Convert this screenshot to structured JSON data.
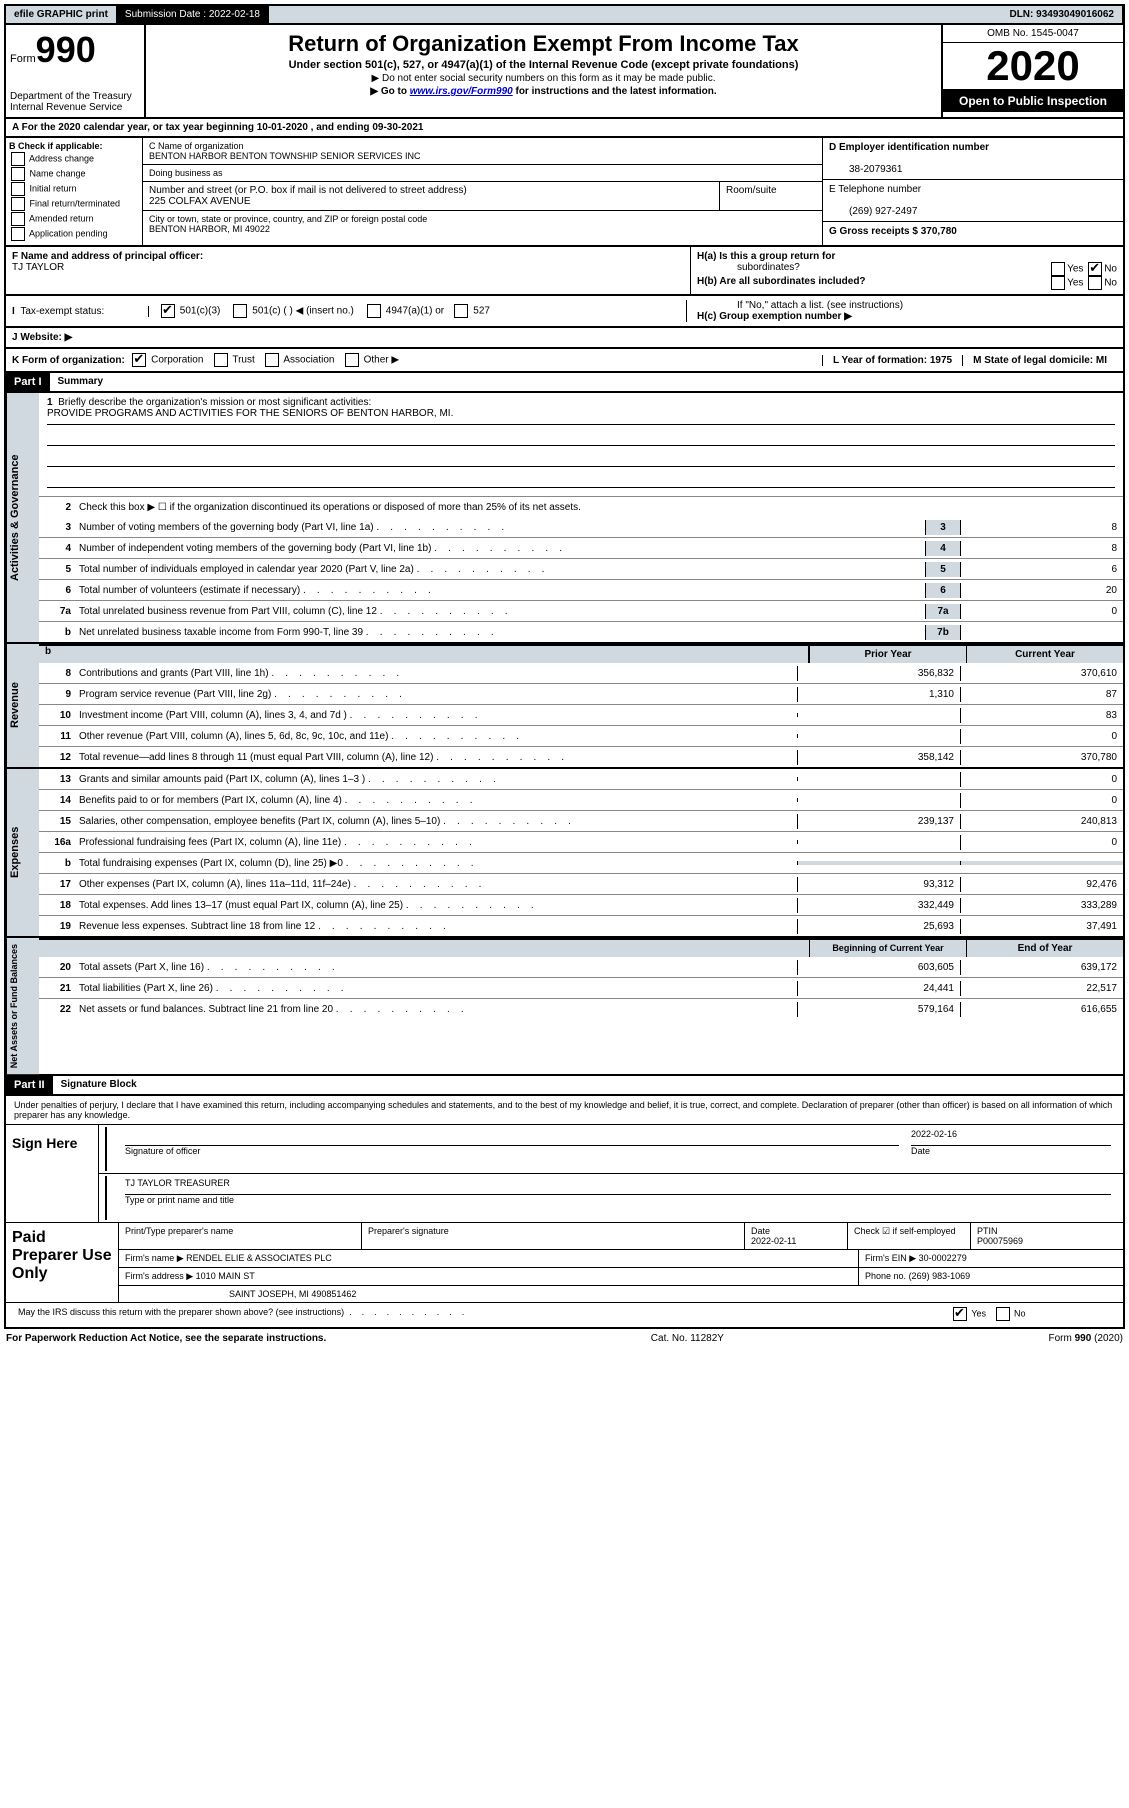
{
  "topbar": {
    "efile": "efile GRAPHIC print",
    "submission_label": "Submission Date : 2022-02-18",
    "dln": "DLN: 93493049016062"
  },
  "header": {
    "form_label": "Form",
    "form_number": "990",
    "dept": "Department of the Treasury",
    "irs": "Internal Revenue Service",
    "title": "Return of Organization Exempt From Income Tax",
    "subtitle": "Under section 501(c), 527, or 4947(a)(1) of the Internal Revenue Code (except private foundations)",
    "note1": "▶ Do not enter social security numbers on this form as it may be made public.",
    "note2_pre": "▶ Go to ",
    "note2_link": "www.irs.gov/Form990",
    "note2_post": " for instructions and the latest information.",
    "omb": "OMB No. 1545-0047",
    "year": "2020",
    "inspection": "Open to Public Inspection"
  },
  "row_a": "A For the 2020 calendar year, or tax year beginning 10-01-2020    , and ending 09-30-2021",
  "section_b": {
    "label": "B Check if applicable:",
    "opts": [
      "Address change",
      "Name change",
      "Initial return",
      "Final return/terminated",
      "Amended return",
      "Application pending"
    ]
  },
  "section_c": {
    "name_label": "C Name of organization",
    "name": "BENTON HARBOR BENTON TOWNSHIP SENIOR SERVICES INC",
    "dba_label": "Doing business as",
    "addr_label": "Number and street (or P.O. box if mail is not delivered to street address)",
    "addr": "225 COLFAX AVENUE",
    "room_label": "Room/suite",
    "city_label": "City or town, state or province, country, and ZIP or foreign postal code",
    "city": "BENTON HARBOR, MI  49022"
  },
  "section_d": {
    "ein_label": "D Employer identification number",
    "ein": "38-2079361",
    "phone_label": "E Telephone number",
    "phone": "(269) 927-2497",
    "gross_label": "G Gross receipts $ 370,780"
  },
  "section_f": {
    "label": "F Name and address of principal officer:",
    "name": "TJ TAYLOR"
  },
  "section_h": {
    "ha": "H(a)  Is this a group return for",
    "ha2": "subordinates?",
    "hb": "H(b)  Are all subordinates included?",
    "hb_note": "If \"No,\" attach a list. (see instructions)",
    "hc": "H(c)  Group exemption number ▶"
  },
  "tax_status": {
    "label": "Tax-exempt status:",
    "opts": [
      "501(c)(3)",
      "501(c) (   ) ◀ (insert no.)",
      "4947(a)(1) or",
      "527"
    ]
  },
  "website": "J    Website: ▶",
  "kform": {
    "label": "K Form of organization:",
    "opts": [
      "Corporation",
      "Trust",
      "Association",
      "Other ▶"
    ],
    "l_label": "L Year of formation: 1975",
    "m_label": "M State of legal domicile: MI"
  },
  "part1": {
    "tab": "Part I",
    "title": "Summary",
    "l1": "Briefly describe the organization's mission or most significant activities:",
    "mission": "PROVIDE PROGRAMS AND ACTIVITIES FOR THE SENIORS OF BENTON HARBOR, MI.",
    "l2": "Check this box ▶ ☐  if the organization discontinued its operations or disposed of more than 25% of its net assets.",
    "lines_gov": [
      {
        "n": "3",
        "d": "Number of voting members of the governing body (Part VI, line 1a)",
        "b": "3",
        "v": "8"
      },
      {
        "n": "4",
        "d": "Number of independent voting members of the governing body (Part VI, line 1b)",
        "b": "4",
        "v": "8"
      },
      {
        "n": "5",
        "d": "Total number of individuals employed in calendar year 2020 (Part V, line 2a)",
        "b": "5",
        "v": "6"
      },
      {
        "n": "6",
        "d": "Total number of volunteers (estimate if necessary)",
        "b": "6",
        "v": "20"
      },
      {
        "n": "7a",
        "d": "Total unrelated business revenue from Part VIII, column (C), line 12",
        "b": "7a",
        "v": "0"
      },
      {
        "n": "b",
        "d": "Net unrelated business taxable income from Form 990-T, line 39",
        "b": "7b",
        "v": ""
      }
    ],
    "prior_year": "Prior Year",
    "current_year": "Current Year",
    "lines_rev": [
      {
        "n": "8",
        "d": "Contributions and grants (Part VIII, line 1h)",
        "p": "356,832",
        "c": "370,610"
      },
      {
        "n": "9",
        "d": "Program service revenue (Part VIII, line 2g)",
        "p": "1,310",
        "c": "87"
      },
      {
        "n": "10",
        "d": "Investment income (Part VIII, column (A), lines 3, 4, and 7d )",
        "p": "",
        "c": "83"
      },
      {
        "n": "11",
        "d": "Other revenue (Part VIII, column (A), lines 5, 6d, 8c, 9c, 10c, and 11e)",
        "p": "",
        "c": "0"
      },
      {
        "n": "12",
        "d": "Total revenue—add lines 8 through 11 (must equal Part VIII, column (A), line 12)",
        "p": "358,142",
        "c": "370,780"
      }
    ],
    "lines_exp": [
      {
        "n": "13",
        "d": "Grants and similar amounts paid (Part IX, column (A), lines 1–3 )",
        "p": "",
        "c": "0"
      },
      {
        "n": "14",
        "d": "Benefits paid to or for members (Part IX, column (A), line 4)",
        "p": "",
        "c": "0"
      },
      {
        "n": "15",
        "d": "Salaries, other compensation, employee benefits (Part IX, column (A), lines 5–10)",
        "p": "239,137",
        "c": "240,813"
      },
      {
        "n": "16a",
        "d": "Professional fundraising fees (Part IX, column (A), line 11e)",
        "p": "",
        "c": "0"
      },
      {
        "n": "b",
        "d": "Total fundraising expenses (Part IX, column (D), line 25) ▶0",
        "p": "",
        "c": "",
        "shade": true
      },
      {
        "n": "17",
        "d": "Other expenses (Part IX, column (A), lines 11a–11d, 11f–24e)",
        "p": "93,312",
        "c": "92,476"
      },
      {
        "n": "18",
        "d": "Total expenses. Add lines 13–17 (must equal Part IX, column (A), line 25)",
        "p": "332,449",
        "c": "333,289"
      },
      {
        "n": "19",
        "d": "Revenue less expenses. Subtract line 18 from line 12",
        "p": "25,693",
        "c": "37,491"
      }
    ],
    "beg_year": "Beginning of Current Year",
    "end_year": "End of Year",
    "lines_net": [
      {
        "n": "20",
        "d": "Total assets (Part X, line 16)",
        "p": "603,605",
        "c": "639,172"
      },
      {
        "n": "21",
        "d": "Total liabilities (Part X, line 26)",
        "p": "24,441",
        "c": "22,517"
      },
      {
        "n": "22",
        "d": "Net assets or fund balances. Subtract line 21 from line 20",
        "p": "579,164",
        "c": "616,655"
      }
    ],
    "side_gov": "Activities & Governance",
    "side_rev": "Revenue",
    "side_exp": "Expenses",
    "side_net": "Net Assets or Fund Balances"
  },
  "part2": {
    "tab": "Part II",
    "title": "Signature Block",
    "declaration": "Under penalties of perjury, I declare that I have examined this return, including accompanying schedules and statements, and to the best of my knowledge and belief, it is true, correct, and complete. Declaration of preparer (other than officer) is based on all information of which preparer has any knowledge.",
    "sign_here": "Sign Here",
    "sig_officer": "Signature of officer",
    "sig_date": "2022-02-16",
    "date_label": "Date",
    "officer_name": "TJ TAYLOR  TREASURER",
    "type_name": "Type or print name and title",
    "paid_label": "Paid Preparer Use Only",
    "prep_name_label": "Print/Type preparer's name",
    "prep_sig_label": "Preparer's signature",
    "prep_date": "2022-02-11",
    "check_if": "Check ☑ if self-employed",
    "ptin_label": "PTIN",
    "ptin": "P00075969",
    "firm_name_label": "Firm's name    ▶",
    "firm_name": "RENDEL ELIE & ASSOCIATES PLC",
    "firm_ein_label": "Firm's EIN ▶",
    "firm_ein": "30-0002279",
    "firm_addr_label": "Firm's address ▶",
    "firm_addr": "1010 MAIN ST",
    "firm_city": "SAINT JOSEPH, MI  490851462",
    "firm_phone_label": "Phone no.",
    "firm_phone": "(269) 983-1069",
    "discuss": "May the IRS discuss this return with the preparer shown above? (see instructions)"
  },
  "footer": {
    "left": "For Paperwork Reduction Act Notice, see the separate instructions.",
    "mid": "Cat. No. 11282Y",
    "right": "Form 990 (2020)"
  }
}
